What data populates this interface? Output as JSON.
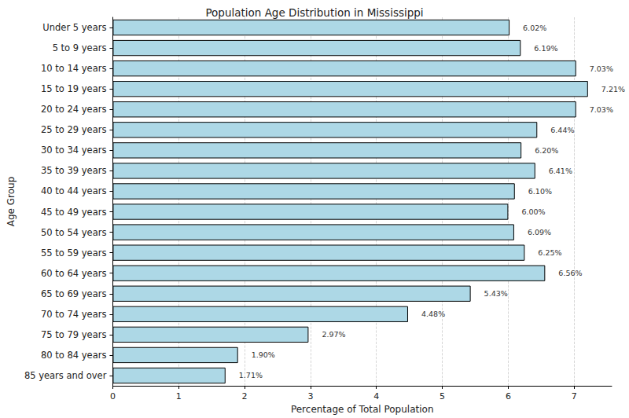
{
  "chart_data": {
    "type": "bar",
    "orientation": "horizontal",
    "title": "Population Age Distribution in Mississippi",
    "x_label": "Percentage of Total Population",
    "y_label": "Age Group",
    "categories": [
      "Under 5 years",
      "5 to 9 years",
      "10 to 14 years",
      "15 to 19 years",
      "20 to 24 years",
      "25 to 29 years",
      "30 to 34 years",
      "35 to 39 years",
      "40 to 44 years",
      "45 to 49 years",
      "50 to 54 years",
      "55 to 59 years",
      "60 to 64 years",
      "65 to 69 years",
      "70 to 74 years",
      "75 to 79 years",
      "80 to 84 years",
      "85 years and over"
    ],
    "values": [
      6.02,
      6.19,
      7.03,
      7.21,
      7.03,
      6.44,
      6.2,
      6.41,
      6.1,
      6.0,
      6.09,
      6.25,
      6.56,
      5.43,
      4.48,
      2.97,
      1.9,
      1.71
    ],
    "value_labels": [
      "6.02%",
      "6.19%",
      "7.03%",
      "7.21%",
      "7.03%",
      "6.44%",
      "6.20%",
      "6.41%",
      "6.10%",
      "6.00%",
      "6.09%",
      "6.25%",
      "6.56%",
      "5.43%",
      "4.48%",
      "2.97%",
      "1.90%",
      "1.71%"
    ],
    "color": "#add8e6",
    "xlim": [
      0,
      7.57
    ],
    "xticks": [
      0,
      1,
      2,
      3,
      4,
      5,
      6,
      7
    ],
    "grid": true,
    "data_labels": true
  }
}
